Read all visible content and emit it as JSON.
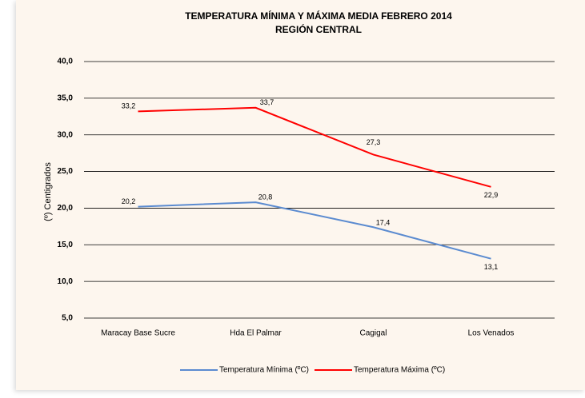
{
  "chart_data": {
    "type": "line",
    "title": "TEMPERATURA MÍNIMA Y MÁXIMA MEDIA FEBRERO 2014",
    "subtitle": "REGIÓN CENTRAL",
    "y_label": "(º) Centigrados",
    "categories": [
      "Maracay Base Sucre",
      "Hda El Palmar",
      "Cagigal",
      "Los Venados"
    ],
    "series": [
      {
        "name": "Temperatura Mínima (ºC)",
        "color": "#5b8bd0",
        "values": [
          20.2,
          20.8,
          17.4,
          13.1
        ],
        "value_labels": [
          "20,2",
          "20,8",
          "17,4",
          "13,1"
        ]
      },
      {
        "name": "Temperatura Máxima (ºC)",
        "color": "#ff0000",
        "values": [
          33.2,
          33.7,
          27.3,
          22.9
        ],
        "value_labels": [
          "33,2",
          "33,7",
          "27,3",
          "22,9"
        ]
      }
    ],
    "ylim": [
      5,
      40
    ],
    "yticks": [
      {
        "value": 5,
        "label": "5,0"
      },
      {
        "value": 10,
        "label": "10,0"
      },
      {
        "value": 15,
        "label": "15,0"
      },
      {
        "value": 20,
        "label": "20,0"
      },
      {
        "value": 25,
        "label": "25,0"
      },
      {
        "value": 30,
        "label": "30,0"
      },
      {
        "value": 35,
        "label": "35,0"
      },
      {
        "value": 40,
        "label": "40,0"
      }
    ],
    "grid": true,
    "legend": "bottom"
  }
}
